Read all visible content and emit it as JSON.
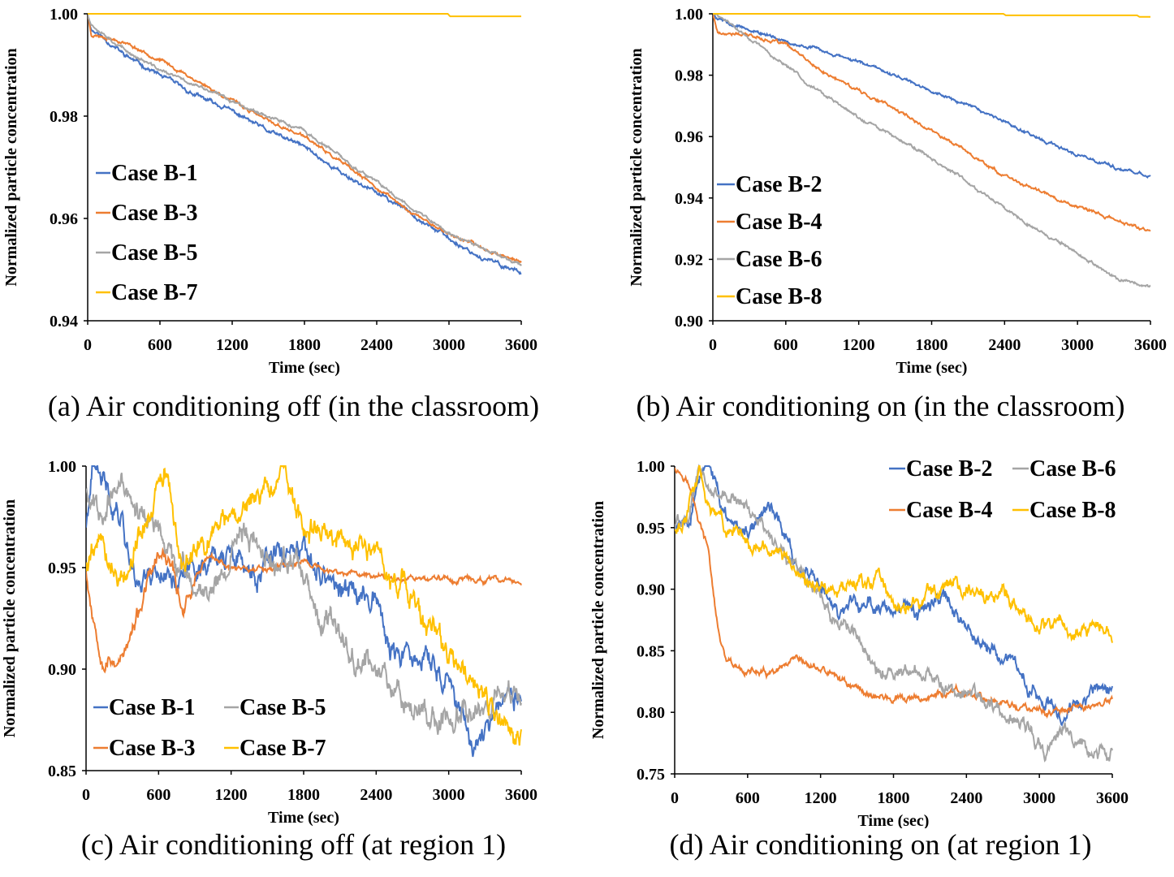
{
  "colors": {
    "blue": "#4472C4",
    "orange": "#ED7D31",
    "gray": "#A5A5A5",
    "yellow": "#FFC000"
  },
  "captions": {
    "a": "(a) Air conditioning off (in the classroom)",
    "b": "(b) Air conditioning on (in the classroom)",
    "c": "(c) Air conditioning off (at region 1)",
    "d": "(d) Air conditioning on (at region 1)"
  },
  "chart_data": [
    {
      "id": "a",
      "type": "line",
      "title": "(a) Air conditioning off (in the classroom)",
      "xlabel": "Time (sec)",
      "ylabel": "Normalized particle concentration",
      "xlim": [
        0,
        3600
      ],
      "ylim": [
        0.94,
        1.0
      ],
      "xticks": [
        "0",
        "600",
        "1200",
        "1800",
        "2400",
        "3000",
        "3600"
      ],
      "yticks": [
        "0.94",
        "0.96",
        "0.98",
        "1.00"
      ],
      "legend": "left-bottom",
      "series": [
        {
          "name": "Case B-1",
          "color": "blue",
          "x": [
            0,
            30,
            150,
            300,
            600,
            900,
            1200,
            1500,
            1800,
            2100,
            2400,
            2700,
            3000,
            3300,
            3600
          ],
          "y": [
            1.0,
            0.997,
            0.995,
            0.992,
            0.988,
            0.984,
            0.981,
            0.977,
            0.974,
            0.969,
            0.965,
            0.961,
            0.956,
            0.952,
            0.9495
          ],
          "noise": 0.0004,
          "seed": 11
        },
        {
          "name": "Case B-3",
          "color": "orange",
          "x": [
            0,
            30,
            150,
            300,
            600,
            900,
            1200,
            1500,
            1800,
            2100,
            2400,
            2700,
            3000,
            3300,
            3600
          ],
          "y": [
            1.0,
            0.996,
            0.9955,
            0.9945,
            0.991,
            0.987,
            0.983,
            0.979,
            0.976,
            0.971,
            0.966,
            0.961,
            0.957,
            0.954,
            0.9515
          ],
          "noise": 0.0003,
          "seed": 23
        },
        {
          "name": "Case B-5",
          "color": "gray",
          "x": [
            0,
            30,
            150,
            300,
            600,
            900,
            1200,
            1500,
            1800,
            2100,
            2400,
            2700,
            3000,
            3300,
            3600
          ],
          "y": [
            1.0,
            0.998,
            0.996,
            0.993,
            0.989,
            0.986,
            0.983,
            0.98,
            0.977,
            0.972,
            0.967,
            0.962,
            0.957,
            0.954,
            0.951
          ],
          "noise": 0.0003,
          "seed": 37
        },
        {
          "name": "Case B-7",
          "color": "yellow",
          "x": [
            0,
            2990,
            3010,
            3600
          ],
          "y": [
            1.0,
            1.0,
            0.9995,
            0.9995
          ],
          "noise": 0,
          "seed": 1
        }
      ]
    },
    {
      "id": "b",
      "type": "line",
      "title": "(b) Air conditioning on (in the classroom)",
      "xlabel": "Time (sec)",
      "ylabel": "Normalized particle concentration",
      "xlim": [
        0,
        3600
      ],
      "ylim": [
        0.9,
        1.0
      ],
      "xticks": [
        "0",
        "600",
        "1200",
        "1800",
        "2400",
        "3000",
        "3600"
      ],
      "yticks": [
        "0.90",
        "0.92",
        "0.94",
        "0.96",
        "0.98",
        "1.00"
      ],
      "legend": "left-bottom",
      "series": [
        {
          "name": "Case B-2",
          "color": "blue",
          "x": [
            0,
            60,
            300,
            600,
            900,
            1200,
            1500,
            1800,
            2100,
            2400,
            2700,
            3000,
            3300,
            3600
          ],
          "y": [
            1.0,
            0.998,
            0.995,
            0.991,
            0.988,
            0.984,
            0.98,
            0.975,
            0.97,
            0.965,
            0.959,
            0.954,
            0.95,
            0.947
          ],
          "noise": 0.0005,
          "seed": 5
        },
        {
          "name": "Case B-4",
          "color": "orange",
          "x": [
            0,
            40,
            300,
            600,
            900,
            1200,
            1500,
            1800,
            2100,
            2400,
            2700,
            3000,
            3300,
            3600
          ],
          "y": [
            1.0,
            0.994,
            0.993,
            0.99,
            0.981,
            0.975,
            0.969,
            0.962,
            0.955,
            0.947,
            0.942,
            0.937,
            0.933,
            0.929
          ],
          "noise": 0.0005,
          "seed": 17
        },
        {
          "name": "Case B-6",
          "color": "gray",
          "x": [
            0,
            100,
            300,
            600,
            900,
            1200,
            1500,
            1800,
            2100,
            2400,
            2700,
            3000,
            3300,
            3600
          ],
          "y": [
            1.0,
            0.998,
            0.992,
            0.983,
            0.974,
            0.966,
            0.96,
            0.953,
            0.945,
            0.937,
            0.929,
            0.922,
            0.914,
            0.911
          ],
          "noise": 0.0005,
          "seed": 29
        },
        {
          "name": "Case B-8",
          "color": "yellow",
          "x": [
            0,
            2390,
            2410,
            3490,
            3510,
            3600
          ],
          "y": [
            1.0,
            1.0,
            0.9995,
            0.9995,
            0.999,
            0.999
          ],
          "noise": 0,
          "seed": 2
        }
      ]
    },
    {
      "id": "c",
      "type": "line",
      "title": "(c) Air conditioning off (at region 1)",
      "xlabel": "Time (sec)",
      "ylabel": "Normalized particle concentration",
      "xlim": [
        0,
        3600
      ],
      "ylim": [
        0.85,
        1.0
      ],
      "xticks": [
        "0",
        "600",
        "1200",
        "1800",
        "2400",
        "3000",
        "3600"
      ],
      "yticks": [
        "0.85",
        "0.90",
        "0.95",
        "1.00"
      ],
      "legend": "bottom-left",
      "series": [
        {
          "name": "Case B-1",
          "color": "blue",
          "x": [
            0,
            50,
            150,
            300,
            400,
            600,
            800,
            1000,
            1200,
            1400,
            1600,
            1800,
            2000,
            2200,
            2400,
            2500,
            2600,
            2800,
            3000,
            3200,
            3400,
            3600
          ],
          "y": [
            0.97,
            0.995,
            0.99,
            0.975,
            0.945,
            0.95,
            0.945,
            0.955,
            0.955,
            0.945,
            0.955,
            0.955,
            0.945,
            0.935,
            0.94,
            0.91,
            0.905,
            0.905,
            0.895,
            0.86,
            0.885,
            0.885
          ],
          "noise": 0.006,
          "seed": 41
        },
        {
          "name": "Case B-3",
          "color": "orange",
          "x": [
            0,
            20,
            60,
            150,
            300,
            400,
            500,
            600,
            700,
            800,
            900,
            1000,
            1200,
            1500,
            1800,
            2000,
            2400,
            2800,
            3200,
            3600
          ],
          "y": [
            0.95,
            0.94,
            0.925,
            0.905,
            0.905,
            0.92,
            0.94,
            0.955,
            0.95,
            0.93,
            0.945,
            0.955,
            0.95,
            0.95,
            0.953,
            0.948,
            0.946,
            0.945,
            0.944,
            0.943
          ],
          "noise": 0.004,
          "decay": 900,
          "seed": 53
        },
        {
          "name": "Case B-5",
          "color": "gray",
          "x": [
            0,
            100,
            300,
            500,
            700,
            900,
            1100,
            1300,
            1500,
            1700,
            1900,
            2100,
            2300,
            2500,
            2700,
            2900,
            3100,
            3300,
            3500,
            3600
          ],
          "y": [
            0.99,
            0.98,
            0.99,
            0.975,
            0.955,
            0.94,
            0.945,
            0.97,
            0.955,
            0.955,
            0.925,
            0.915,
            0.905,
            0.895,
            0.885,
            0.875,
            0.88,
            0.885,
            0.89,
            0.88
          ],
          "noise": 0.006,
          "seed": 67
        },
        {
          "name": "Case B-7",
          "color": "yellow",
          "x": [
            0,
            100,
            300,
            500,
            650,
            800,
            1000,
            1200,
            1400,
            1650,
            1800,
            2000,
            2200,
            2400,
            2500,
            2600,
            2800,
            3000,
            3200,
            3400,
            3600
          ],
          "y": [
            0.95,
            0.965,
            0.945,
            0.975,
            0.995,
            0.95,
            0.965,
            0.975,
            0.985,
            0.995,
            0.965,
            0.97,
            0.96,
            0.96,
            0.945,
            0.94,
            0.925,
            0.905,
            0.89,
            0.875,
            0.865
          ],
          "noise": 0.006,
          "seed": 79
        }
      ]
    },
    {
      "id": "d",
      "type": "line",
      "title": "(d) Air conditioning on (at region 1)",
      "xlabel": "Time (sec)",
      "ylabel": "Normalized particle concentration",
      "xlim": [
        0,
        3600
      ],
      "ylim": [
        0.75,
        1.0
      ],
      "xticks": [
        "0",
        "600",
        "1200",
        "1800",
        "2400",
        "3000",
        "3600"
      ],
      "yticks": [
        "0.75",
        "0.80",
        "0.85",
        "0.90",
        "0.95",
        "1.00"
      ],
      "legend": "top-right",
      "series": [
        {
          "name": "Case B-2",
          "color": "blue",
          "x": [
            0,
            100,
            200,
            280,
            400,
            600,
            800,
            900,
            1000,
            1200,
            1400,
            1600,
            1800,
            2000,
            2200,
            2400,
            2600,
            2800,
            3000,
            3200,
            3400,
            3600
          ],
          "y": [
            0.95,
            0.955,
            0.99,
            1.0,
            0.96,
            0.95,
            0.97,
            0.945,
            0.92,
            0.9,
            0.88,
            0.89,
            0.885,
            0.875,
            0.895,
            0.87,
            0.85,
            0.835,
            0.815,
            0.8,
            0.815,
            0.82
          ],
          "noise": 0.006,
          "seed": 83
        },
        {
          "name": "Case B-4",
          "color": "orange",
          "x": [
            0,
            100,
            200,
            280,
            350,
            420,
            500,
            800,
            1000,
            1200,
            1400,
            1600,
            1800,
            2000,
            2200,
            2400,
            2600,
            2800,
            3000,
            3200,
            3400,
            3600
          ],
          "y": [
            1.0,
            0.99,
            0.955,
            0.93,
            0.87,
            0.84,
            0.835,
            0.83,
            0.84,
            0.835,
            0.825,
            0.815,
            0.81,
            0.81,
            0.815,
            0.815,
            0.81,
            0.805,
            0.8,
            0.8,
            0.805,
            0.81
          ],
          "noise": 0.003,
          "seed": 97
        },
        {
          "name": "Case B-6",
          "color": "gray",
          "x": [
            0,
            100,
            200,
            300,
            500,
            700,
            900,
            1100,
            1300,
            1500,
            1700,
            1900,
            2100,
            2300,
            2500,
            2700,
            2900,
            3050,
            3200,
            3400,
            3600
          ],
          "y": [
            0.95,
            0.96,
            0.995,
            0.98,
            0.975,
            0.955,
            0.93,
            0.91,
            0.88,
            0.86,
            0.83,
            0.835,
            0.83,
            0.815,
            0.815,
            0.8,
            0.79,
            0.765,
            0.79,
            0.77,
            0.765
          ],
          "noise": 0.006,
          "seed": 101
        },
        {
          "name": "Case B-8",
          "color": "yellow",
          "x": [
            0,
            100,
            200,
            300,
            500,
            700,
            900,
            1100,
            1300,
            1500,
            1700,
            1800,
            1900,
            2100,
            2300,
            2500,
            2700,
            2900,
            3100,
            3300,
            3500,
            3600
          ],
          "y": [
            0.95,
            0.955,
            1.0,
            0.965,
            0.945,
            0.935,
            0.925,
            0.905,
            0.9,
            0.905,
            0.91,
            0.88,
            0.885,
            0.895,
            0.905,
            0.895,
            0.895,
            0.875,
            0.87,
            0.865,
            0.875,
            0.855
          ],
          "noise": 0.006,
          "seed": 113
        }
      ]
    }
  ]
}
